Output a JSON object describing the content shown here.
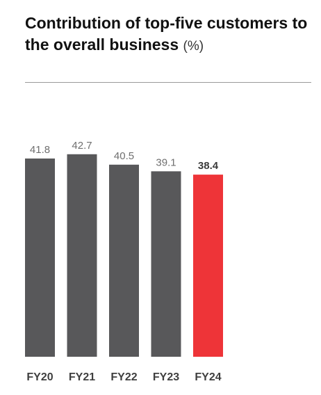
{
  "title": "Contribution of top-five customers to the overall business",
  "title_unit": "(%)",
  "colors": {
    "bar": "#58585a",
    "highlight": "#ee3438"
  },
  "chart_data": {
    "type": "bar",
    "categories": [
      "FY20",
      "FY21",
      "FY22",
      "FY23",
      "FY24"
    ],
    "values": [
      41.8,
      42.7,
      40.5,
      39.1,
      38.4
    ],
    "value_labels": [
      "41.8",
      "42.7",
      "40.5",
      "39.1",
      "38.4"
    ],
    "highlight_index": 4,
    "title": "Contribution of top-five customers to the overall business",
    "unit": "(%)",
    "xlabel": "",
    "ylabel": "",
    "grid": false,
    "legend": "none"
  }
}
